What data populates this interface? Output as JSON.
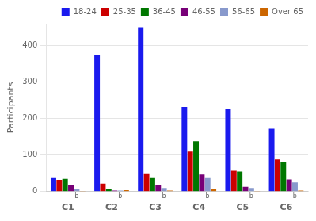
{
  "chart_data": {
    "type": "bar",
    "categories": [
      "C1",
      "C2",
      "C3",
      "C4",
      "C5",
      "C6"
    ],
    "series": [
      {
        "name": "18-24",
        "color": "#1a1aee",
        "values": [
          37,
          375,
          450,
          232,
          227,
          172
        ]
      },
      {
        "name": "25-35",
        "color": "#cc0000",
        "values": [
          32,
          22,
          48,
          110,
          57,
          88
        ]
      },
      {
        "name": "36-45",
        "color": "#007700",
        "values": [
          35,
          8,
          37,
          138,
          55,
          80
        ]
      },
      {
        "name": "46-55",
        "color": "#770077",
        "values": [
          18,
          3,
          18,
          47,
          13,
          33
        ]
      },
      {
        "name": "56-65",
        "color": "#8899cc",
        "values": [
          6,
          3,
          10,
          37,
          10,
          25
        ]
      },
      {
        "name": "Over 65",
        "color": "#cc6600",
        "values": [
          2,
          4,
          3,
          7,
          2,
          3
        ]
      }
    ],
    "ylabel": "Participants",
    "ylim": [
      0,
      460
    ],
    "yticks": [
      0,
      100,
      200,
      300,
      400
    ],
    "grid": true,
    "legend": "upper right",
    "annotations": [
      {
        "text": "b",
        "category": "C1"
      },
      {
        "text": "b",
        "category": "C2"
      },
      {
        "text": "b",
        "category": "C3"
      },
      {
        "text": "b",
        "category": "C4"
      },
      {
        "text": "b",
        "category": "C5"
      },
      {
        "text": "b",
        "category": "C6"
      }
    ]
  }
}
